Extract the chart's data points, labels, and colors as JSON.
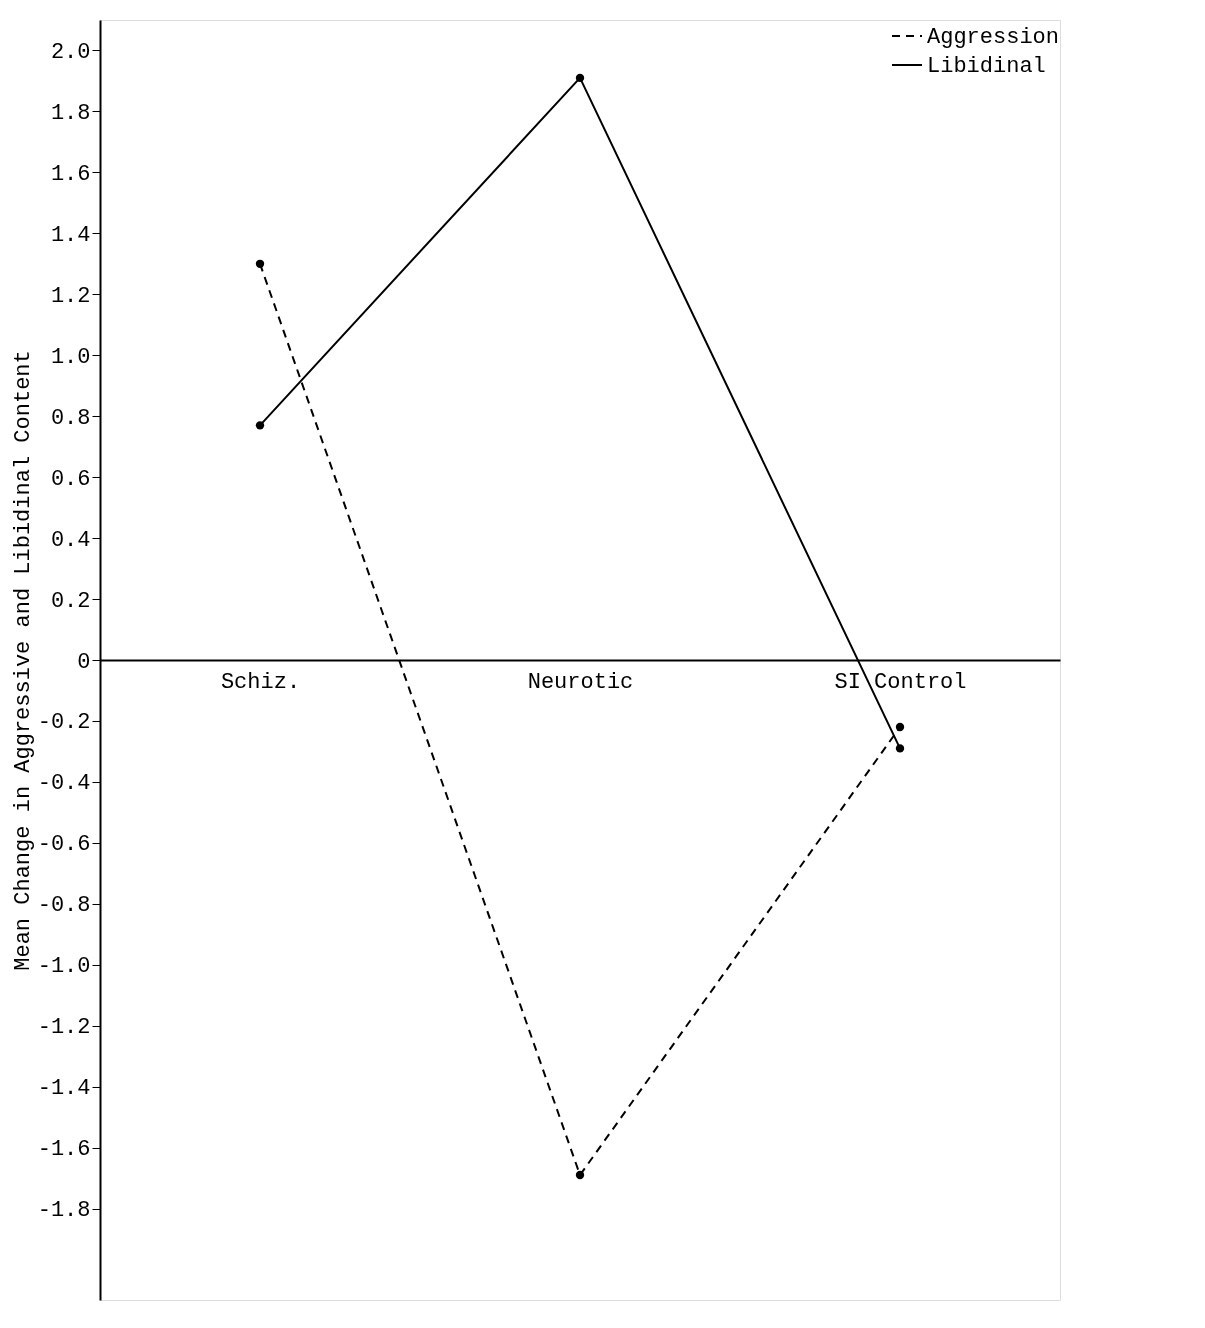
{
  "chart_data": {
    "type": "line",
    "ylabel": "Mean Change in Aggressive and Libidinal Content",
    "categories": [
      "Schiz.",
      "Neurotic",
      "SI Control"
    ],
    "series": [
      {
        "name": "Aggression",
        "color": "#000000",
        "line_style": "dashed",
        "values": [
          1.3,
          -1.69,
          -0.22
        ]
      },
      {
        "name": "Libidinal",
        "color": "#000000",
        "line_style": "solid",
        "values": [
          0.77,
          1.91,
          -0.29
        ]
      }
    ],
    "ylim": [
      -2.1,
      2.1
    ],
    "yticks": [
      -1.8,
      -1.6,
      -1.4,
      -1.2,
      {
        "value": -1,
        "label": "-1.0"
      },
      -0.8,
      -0.6,
      -0.4,
      -0.2,
      0,
      0.2,
      0.4,
      0.6,
      0.8,
      {
        "value": 1,
        "label": "1.0"
      },
      1.2,
      1.4,
      1.6,
      1.8,
      {
        "value": 2,
        "label": "2.0"
      }
    ],
    "marker": "circle",
    "grid": false,
    "legend": "top right"
  }
}
